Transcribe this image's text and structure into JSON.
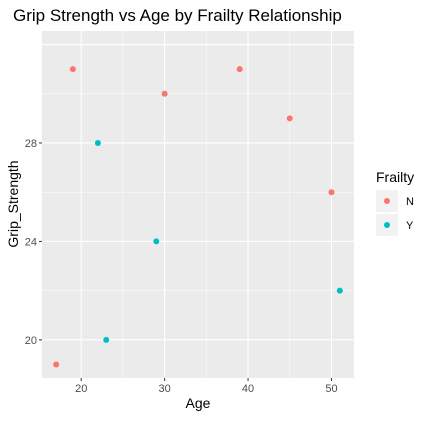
{
  "chart_data": {
    "type": "scatter",
    "title": "Grip Strength vs Age by Frailty Relationship",
    "xlabel": "Age",
    "ylabel": "Grip_Strength",
    "xlim": [
      15.3,
      52.7
    ],
    "ylim": [
      18.45,
      32.55
    ],
    "xticks": [
      20,
      30,
      40,
      50
    ],
    "yticks": [
      20,
      24,
      28
    ],
    "grid": true,
    "legend_position": "right",
    "legend_title": "Frailty",
    "series": [
      {
        "name": "N",
        "color": "#F8766D",
        "points": [
          {
            "x": 17,
            "y": 19
          },
          {
            "x": 19,
            "y": 31
          },
          {
            "x": 30,
            "y": 30
          },
          {
            "x": 39,
            "y": 31
          },
          {
            "x": 45,
            "y": 29
          },
          {
            "x": 50,
            "y": 26
          }
        ]
      },
      {
        "name": "Y",
        "color": "#00BFC4",
        "points": [
          {
            "x": 22,
            "y": 28
          },
          {
            "x": 23,
            "y": 20
          },
          {
            "x": 29,
            "y": 24
          },
          {
            "x": 51,
            "y": 22
          }
        ]
      }
    ]
  }
}
